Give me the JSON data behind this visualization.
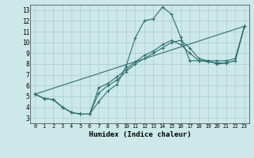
{
  "xlabel": "Humidex (Indice chaleur)",
  "background_color": "#cce8e8",
  "grid_color": "#aacece",
  "line_color": "#2d7070",
  "xlim": [
    -0.5,
    23.5
  ],
  "ylim": [
    2.5,
    13.5
  ],
  "xticks": [
    0,
    1,
    2,
    3,
    4,
    5,
    6,
    7,
    8,
    9,
    10,
    11,
    12,
    13,
    14,
    15,
    16,
    17,
    18,
    19,
    20,
    21,
    22,
    23
  ],
  "yticks": [
    3,
    4,
    5,
    6,
    7,
    8,
    9,
    10,
    11,
    12,
    13
  ],
  "curve1_x": [
    0,
    1,
    2,
    3,
    4,
    5,
    6,
    7,
    8,
    9,
    10,
    11,
    12,
    13,
    14,
    15,
    16,
    17,
    18,
    19,
    20,
    21,
    22,
    23
  ],
  "curve1_y": [
    5.2,
    4.8,
    4.7,
    4.0,
    3.5,
    3.35,
    3.35,
    4.5,
    5.5,
    6.1,
    7.8,
    10.4,
    12.0,
    12.2,
    13.3,
    12.6,
    10.5,
    8.3,
    8.3,
    8.3,
    8.3,
    8.3,
    8.5,
    11.5
  ],
  "curve2_x": [
    0,
    1,
    2,
    3,
    4,
    5,
    6,
    7,
    8,
    9,
    10,
    11,
    12,
    13,
    14,
    15,
    16,
    17,
    18,
    19,
    20,
    21,
    22,
    23
  ],
  "curve2_y": [
    5.2,
    4.8,
    4.7,
    4.0,
    3.5,
    3.35,
    3.35,
    5.3,
    6.0,
    6.5,
    7.3,
    8.0,
    8.5,
    9.0,
    9.5,
    10.0,
    10.2,
    9.5,
    8.5,
    8.3,
    8.0,
    8.1,
    8.3,
    11.5
  ],
  "curve3_x": [
    0,
    1,
    2,
    3,
    4,
    5,
    6,
    7,
    8,
    9,
    10,
    11,
    12,
    13,
    14,
    15,
    16,
    17,
    18,
    19,
    20,
    21,
    22,
    23
  ],
  "curve3_y": [
    5.2,
    4.8,
    4.7,
    4.0,
    3.5,
    3.35,
    3.35,
    5.8,
    6.2,
    6.8,
    7.5,
    8.2,
    8.8,
    9.2,
    9.8,
    10.2,
    9.8,
    9.0,
    8.3,
    8.2,
    8.1,
    8.1,
    8.3,
    11.5
  ],
  "line_x": [
    0,
    23
  ],
  "line_y": [
    5.2,
    11.5
  ]
}
